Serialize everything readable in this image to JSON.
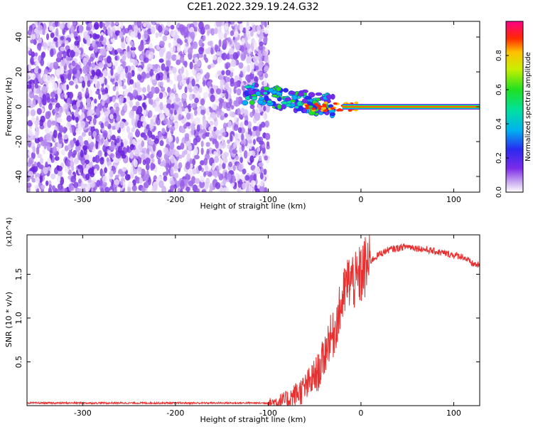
{
  "title": "C2E1.2022.329.19.24.G32",
  "chart_data": [
    {
      "type": "heatmap",
      "xlabel": "Height of straight line (km)",
      "ylabel": "Frequency (Hz)",
      "xlim": [
        -360,
        128
      ],
      "ylim": [
        -49,
        49
      ],
      "xticks": [
        -300,
        -200,
        -100,
        0,
        100
      ],
      "yticks": [
        -40,
        -20,
        0,
        20,
        40
      ],
      "colorbar": {
        "label": "Normalized spectral amplitude",
        "range": [
          0,
          1
        ],
        "ticks": [
          "0.0",
          "0.2",
          "0.4",
          "0.6",
          "0.8"
        ]
      },
      "regions": [
        {
          "x": [
            -360,
            -100
          ],
          "y": [
            -49,
            49
          ],
          "level": "0.05-0.2"
        },
        {
          "x": [
            -125,
            -30
          ],
          "y": [
            -8,
            15
          ],
          "level": "0.2-0.5"
        },
        {
          "x": [
            -30,
            128
          ],
          "y": [
            -1,
            1
          ],
          "level": "0.8-1.0"
        }
      ],
      "grid": false
    },
    {
      "type": "line",
      "xlabel": "Height of straight line (km)",
      "ylabel": "SNR (10 * v/v)",
      "y_multiplier": "(x10^4)",
      "xlim": [
        -360,
        128
      ],
      "ylim": [
        0,
        1.95
      ],
      "xticks": [
        -300,
        -200,
        -100,
        0,
        100
      ],
      "yticks": [
        0.5,
        1.0,
        1.5
      ],
      "series": [
        {
          "color": "#e83030",
          "x": [
            -360,
            -300,
            -200,
            -120,
            -100,
            -80,
            -60,
            -45,
            -40,
            -35,
            -30,
            -25,
            -20,
            -15,
            -10,
            -5,
            0,
            10,
            20,
            30,
            40,
            50,
            60,
            70,
            80,
            90,
            100,
            110,
            120,
            128
          ],
          "y": [
            0.03,
            0.03,
            0.03,
            0.03,
            0.03,
            0.06,
            0.2,
            0.4,
            0.55,
            0.75,
            0.8,
            1.0,
            1.2,
            1.4,
            1.45,
            1.4,
            1.5,
            1.65,
            1.73,
            1.78,
            1.8,
            1.82,
            1.8,
            1.78,
            1.76,
            1.74,
            1.72,
            1.7,
            1.62,
            1.6
          ]
        }
      ],
      "grid": false
    }
  ]
}
